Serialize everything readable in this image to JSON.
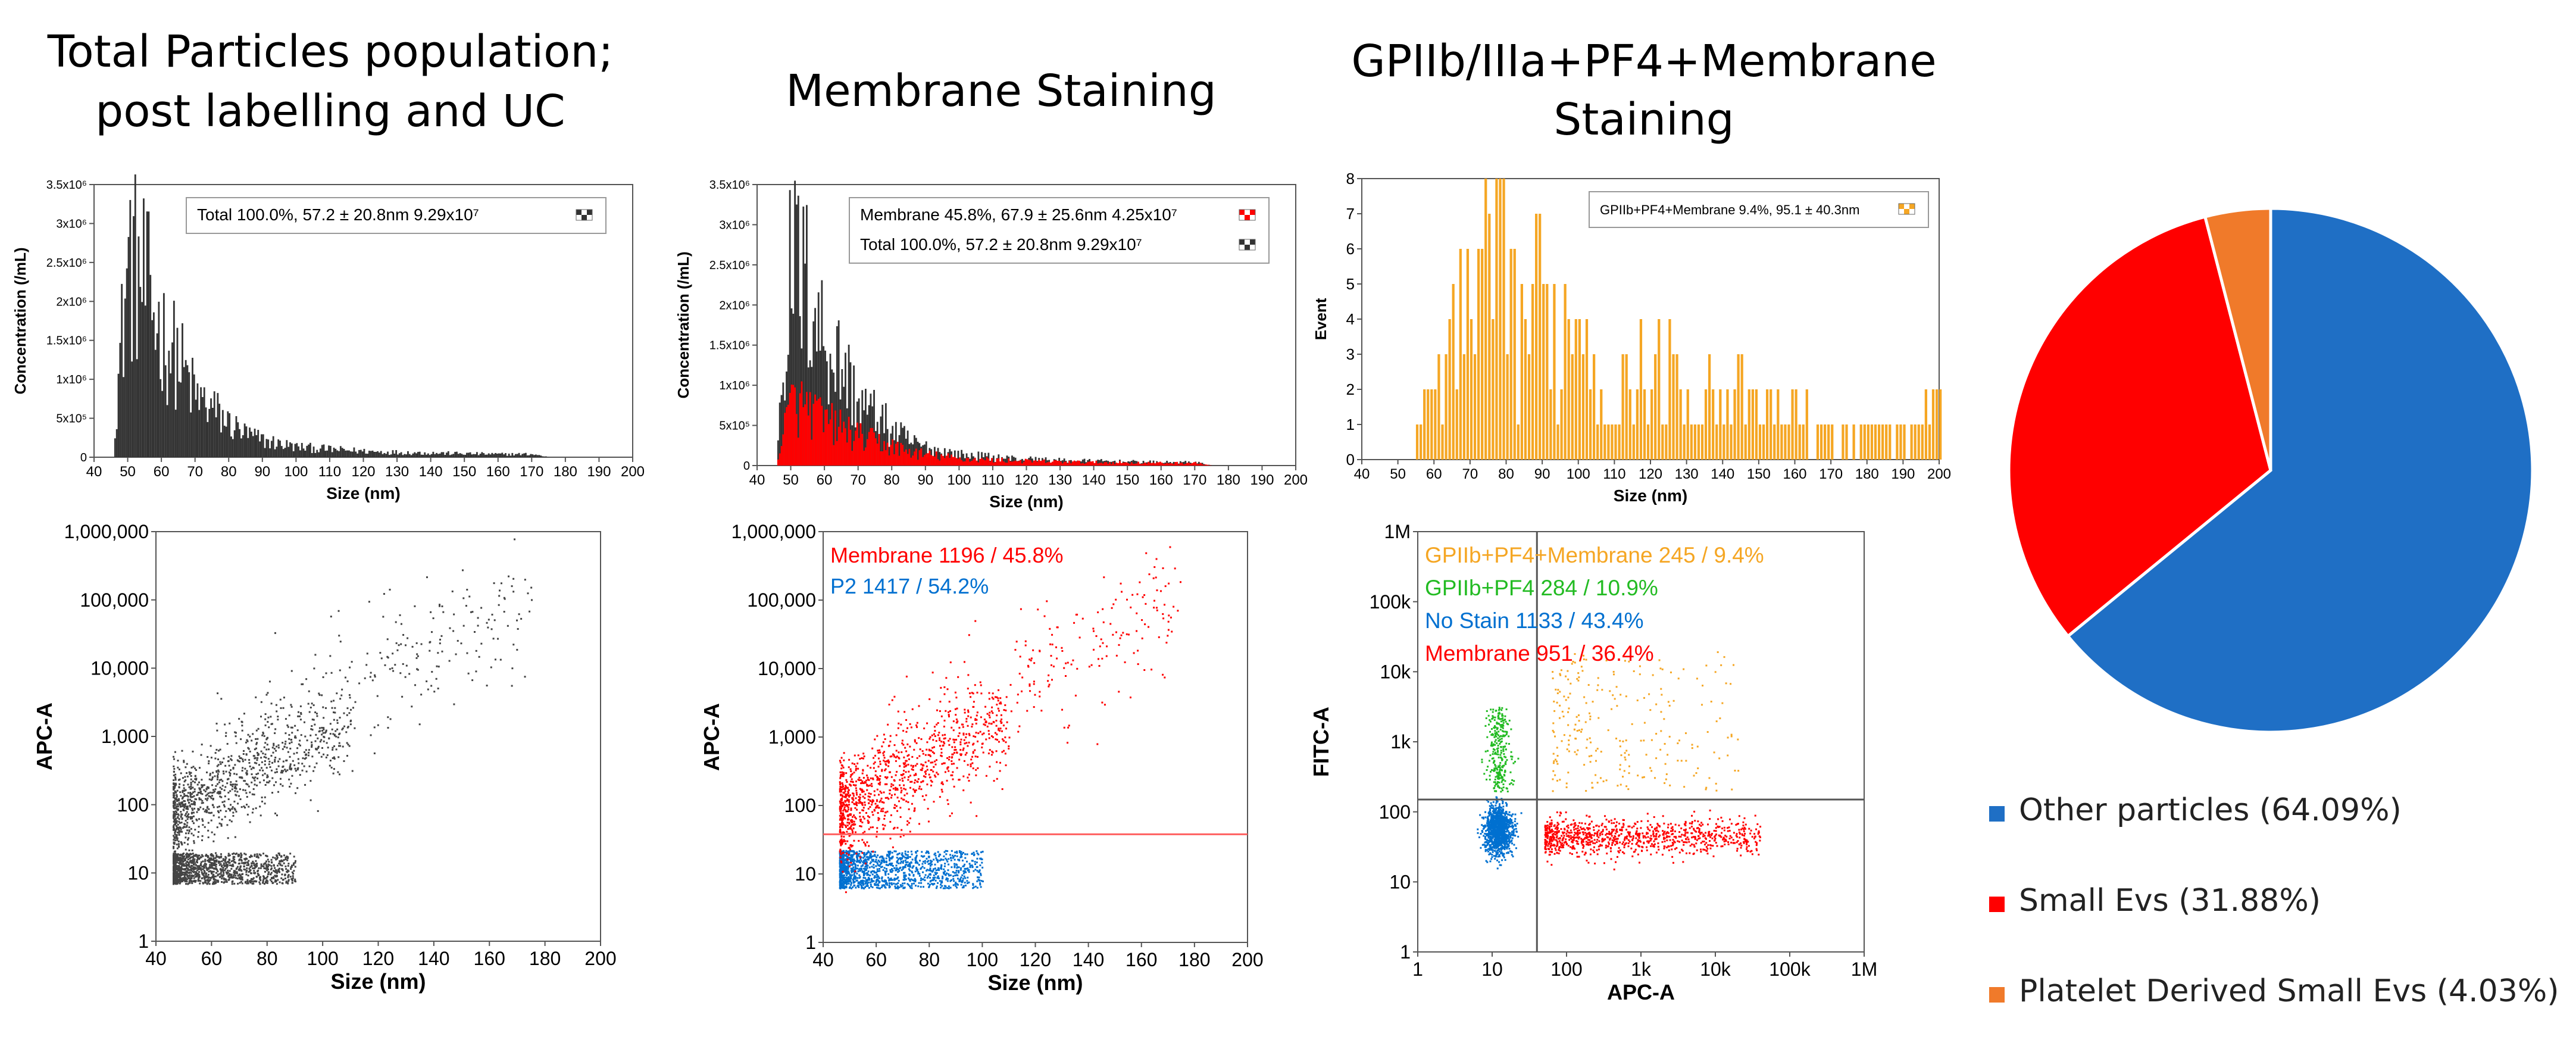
{
  "titles": {
    "col1_line1": "Total Particles population;",
    "col1_line2": "post labelling and UC",
    "col2": "Membrane Staining",
    "col3_line1": "GPIIb/IIIa+PF4+Membrane",
    "col3_line2": "Staining"
  },
  "colors": {
    "total": "#333333",
    "membrane": "#ff0000",
    "p2": "#0070d0",
    "gpiib_pf4_membrane": "#f5a623",
    "gpiib_pf4": "#22bb22",
    "no_stain": "#0070d0",
    "pie_other": "#1f6fc5",
    "pie_small": "#ff0000",
    "pie_platelet": "#f07a2a"
  },
  "chart_data": [
    {
      "id": "hist_total",
      "type": "bar",
      "xlabel": "Size (nm)",
      "ylabel": "Concentration (/mL)",
      "xlim": [
        40,
        200
      ],
      "ylim": [
        0,
        3500000
      ],
      "xticks": [
        "40",
        "50",
        "60",
        "70",
        "80",
        "90",
        "100",
        "110",
        "120",
        "130",
        "140",
        "150",
        "160",
        "170",
        "180",
        "190",
        "200"
      ],
      "yticks": [
        "0",
        "5x10⁵",
        "1x10⁶",
        "1.5x10⁶",
        "2x10⁶",
        "2.5x10⁶",
        "3x10⁶",
        "3.5x10⁶"
      ],
      "legend": [
        {
          "text": "Total 100.0%, 57.2 ± 20.8nm 9.29x10⁷",
          "series": "total"
        }
      ],
      "bin_x": [
        45,
        50,
        55,
        60,
        65,
        70,
        75,
        80,
        85,
        90,
        95,
        100,
        110,
        120,
        130,
        140,
        150,
        160,
        170,
        175
      ],
      "series": [
        {
          "name": "Total",
          "values": [
            0,
            3300000,
            2800000,
            2000000,
            1600000,
            1000000,
            800000,
            550000,
            380000,
            280000,
            220000,
            170000,
            130000,
            100000,
            80000,
            70000,
            60000,
            50000,
            50000,
            0
          ]
        }
      ]
    },
    {
      "id": "hist_membrane",
      "type": "bar",
      "xlabel": "Size (nm)",
      "ylabel": "Concentration (/mL)",
      "xlim": [
        40,
        200
      ],
      "ylim": [
        0,
        3500000
      ],
      "xticks": [
        "40",
        "50",
        "60",
        "70",
        "80",
        "90",
        "100",
        "110",
        "120",
        "130",
        "140",
        "150",
        "160",
        "170",
        "180",
        "190",
        "200"
      ],
      "yticks": [
        "0",
        "5x10⁵",
        "1x10⁶",
        "1.5x10⁶",
        "2x10⁶",
        "2.5x10⁶",
        "3x10⁶",
        "3.5x10⁶"
      ],
      "legend": [
        {
          "text": "Membrane 45.8%, 67.9 ± 25.6nm 4.25x10⁷",
          "series": "membrane"
        },
        {
          "text": "Total 100.0%, 57.2 ± 20.8nm 9.29x10⁷",
          "series": "total"
        }
      ],
      "bin_x": [
        45,
        50,
        55,
        60,
        65,
        70,
        75,
        80,
        85,
        90,
        95,
        100,
        110,
        120,
        130,
        140,
        150,
        160,
        170,
        175
      ],
      "series": [
        {
          "name": "Total",
          "values": [
            0,
            3300000,
            2800000,
            2000000,
            1600000,
            1000000,
            800000,
            550000,
            380000,
            280000,
            220000,
            170000,
            130000,
            100000,
            80000,
            70000,
            60000,
            50000,
            50000,
            0
          ]
        },
        {
          "name": "Membrane",
          "values": [
            0,
            1000000,
            900000,
            700000,
            600000,
            450000,
            380000,
            300000,
            220000,
            170000,
            140000,
            110000,
            90000,
            70000,
            60000,
            50000,
            45000,
            40000,
            40000,
            0
          ]
        }
      ]
    },
    {
      "id": "hist_gpiib",
      "type": "bar",
      "xlabel": "Size (nm)",
      "ylabel": "Event",
      "xlim": [
        40,
        200
      ],
      "ylim": [
        0,
        8
      ],
      "xticks": [
        "40",
        "50",
        "60",
        "70",
        "80",
        "90",
        "100",
        "110",
        "120",
        "130",
        "140",
        "150",
        "160",
        "170",
        "180",
        "190",
        "200"
      ],
      "yticks": [
        "0",
        "1",
        "2",
        "3",
        "4",
        "5",
        "6",
        "7",
        "8"
      ],
      "legend": [
        {
          "text": "GPIIb+PF4+Membrane 9.4%, 95.1 ± 40.3nm",
          "series": "gpiib_pf4_membrane"
        }
      ],
      "bin_x": [
        55,
        60,
        65,
        70,
        75,
        80,
        85,
        90,
        95,
        100,
        105,
        110,
        120,
        130,
        140,
        150,
        160,
        170,
        180,
        190,
        200
      ],
      "series": [
        {
          "name": "GPIIb+PF4+Membrane",
          "values": [
            1,
            3,
            5,
            6,
            8,
            7,
            6,
            7,
            5,
            8,
            4,
            3,
            4,
            3,
            3,
            2,
            2,
            1,
            1,
            1,
            2
          ]
        }
      ]
    },
    {
      "id": "scatter_total",
      "type": "scatter",
      "xlabel": "Size (nm)",
      "ylabel": "APC-A",
      "xlim": [
        40,
        200
      ],
      "ylim": [
        1,
        1000000
      ],
      "yscale": "log",
      "xticks": [
        "40",
        "60",
        "80",
        "100",
        "120",
        "140",
        "160",
        "180",
        "200"
      ],
      "yticks": [
        "1",
        "10",
        "100",
        "1,000",
        "10,000",
        "100,000",
        "1,000,000"
      ],
      "populations": [
        {
          "series": "total",
          "x_range": [
            46,
            90
          ],
          "y_log10_range": [
            0.85,
            1.3
          ],
          "x_peak": 52
        },
        {
          "series": "total",
          "x_range": [
            46,
            110
          ],
          "y_log10_range": [
            1.9,
            3.6
          ],
          "x_peak": 60
        },
        {
          "series": "total",
          "x_range": [
            60,
            175
          ],
          "y_log10_range": [
            2.8,
            5.6
          ],
          "x_peak": 100
        }
      ]
    },
    {
      "id": "scatter_membrane",
      "type": "scatter",
      "xlabel": "Size (nm)",
      "ylabel": "APC-A",
      "xlim": [
        40,
        200
      ],
      "ylim": [
        1,
        1000000
      ],
      "yscale": "log",
      "threshold_y": 38,
      "xticks": [
        "40",
        "60",
        "80",
        "100",
        "120",
        "140",
        "160",
        "180",
        "200"
      ],
      "yticks": [
        "1",
        "10",
        "100",
        "1,000",
        "10,000",
        "100,000",
        "1,000,000"
      ],
      "gate_labels": [
        {
          "name": "Membrane",
          "count": "1196 / 45.8%",
          "series": "membrane"
        },
        {
          "name": "P2",
          "count": "1417 / 54.2%",
          "series": "p2"
        }
      ],
      "populations": [
        {
          "series": "p2",
          "x_range": [
            46,
            100
          ],
          "y_log10_range": [
            0.8,
            1.35
          ],
          "x_peak": 52
        },
        {
          "series": "membrane",
          "x_range": [
            46,
            110
          ],
          "y_log10_range": [
            1.9,
            3.6
          ],
          "x_peak": 60
        },
        {
          "series": "membrane",
          "x_range": [
            60,
            175
          ],
          "y_log10_range": [
            2.8,
            5.6
          ],
          "x_peak": 100
        }
      ]
    },
    {
      "id": "scatter_fitc",
      "type": "scatter",
      "xlabel": "APC-A",
      "ylabel": "FITC-A",
      "xscale": "log",
      "yscale": "log",
      "xlim": [
        1,
        1000000
      ],
      "ylim": [
        1,
        1000000
      ],
      "quadrant_x": 40,
      "quadrant_y": 150,
      "xticks": [
        "1",
        "10",
        "100",
        "1k",
        "10k",
        "100k",
        "1M"
      ],
      "yticks": [
        "1",
        "10",
        "100",
        "1k",
        "10k",
        "100k",
        "1M"
      ],
      "gate_labels": [
        {
          "name": "GPIIb+PF4+Membrane",
          "count": "245 / 9.4%",
          "series": "gpiib_pf4_membrane"
        },
        {
          "name": "GPIIb+PF4",
          "count": "284 / 10.9%",
          "series": "gpiib_pf4"
        },
        {
          "name": "No Stain",
          "count": "1133 / 43.4%",
          "series": "no_stain"
        },
        {
          "name": "Membrane",
          "count": "951 / 36.4%",
          "series": "membrane"
        }
      ],
      "populations": [
        {
          "series": "no_stain",
          "x_log10": [
            0.85,
            1.3
          ],
          "y_log10": [
            1.3,
            2.2
          ]
        },
        {
          "series": "gpiib_pf4",
          "x_log10": [
            0.85,
            1.3
          ],
          "y_log10": [
            2.3,
            3.5
          ]
        },
        {
          "series": "gpiib_pf4_membrane",
          "x_log10": [
            1.8,
            4.3
          ],
          "y_log10": [
            2.3,
            4.3
          ]
        },
        {
          "series": "membrane",
          "x_log10": [
            1.7,
            4.6
          ],
          "y_log10": [
            1.2,
            2.1
          ]
        }
      ]
    },
    {
      "id": "pie",
      "type": "pie",
      "labels": [
        "Other particles (64.09%)",
        "Small Evs (31.88%)",
        "Platelet Derived Small Evs (4.03%)"
      ],
      "values": [
        64.09,
        31.88,
        4.03
      ],
      "colors": [
        "#1f6fc5",
        "#ff0000",
        "#f07a2a"
      ],
      "legend": "bottom"
    }
  ]
}
